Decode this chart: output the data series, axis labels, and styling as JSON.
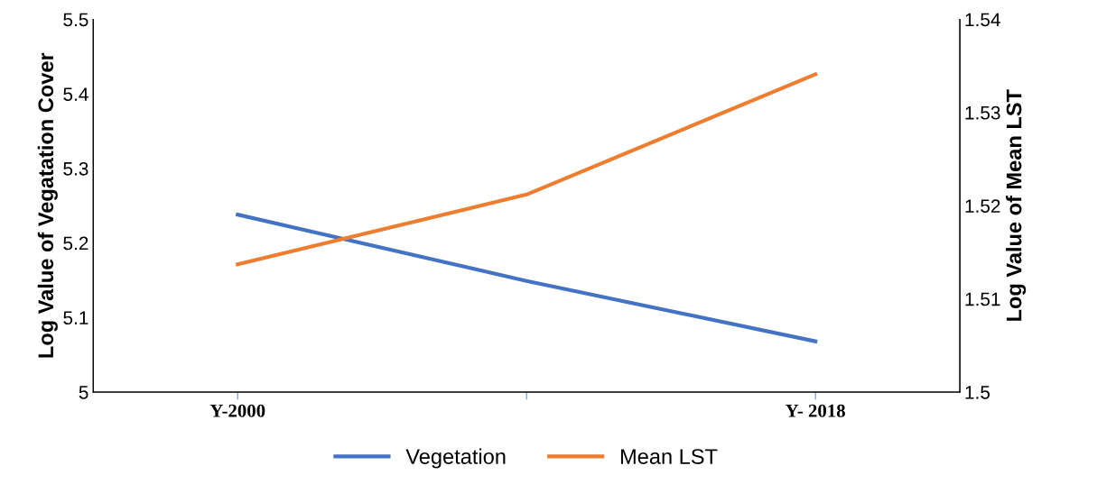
{
  "chart_data": {
    "type": "line",
    "categories": [
      "Y-2000",
      null,
      "Y- 2018"
    ],
    "ylabel": "Log Value of Vegatation Cover",
    "y2label": "Log Value of Mean LST",
    "series": [
      {
        "name": "Vegetation",
        "color": "#4472c4",
        "values": [
          5.238,
          5.149,
          5.068
        ]
      },
      {
        "name": "Mean LST",
        "color": "#ed7d31",
        "values": [
          1.5137,
          1.5212,
          1.5341
        ],
        "axis": "y2"
      }
    ],
    "ylim": [
      5,
      5.5
    ],
    "yticks": [
      {
        "value": 5,
        "label": "5"
      },
      5.1,
      5.2,
      5.3,
      5.4,
      5.5
    ],
    "y2lim": [
      1.5,
      1.54
    ],
    "y2ticks": [
      1.5,
      1.51,
      1.52,
      1.53,
      1.54
    ],
    "legend": "bottom",
    "grid": false,
    "marker": "none",
    "line_style": "solid"
  }
}
